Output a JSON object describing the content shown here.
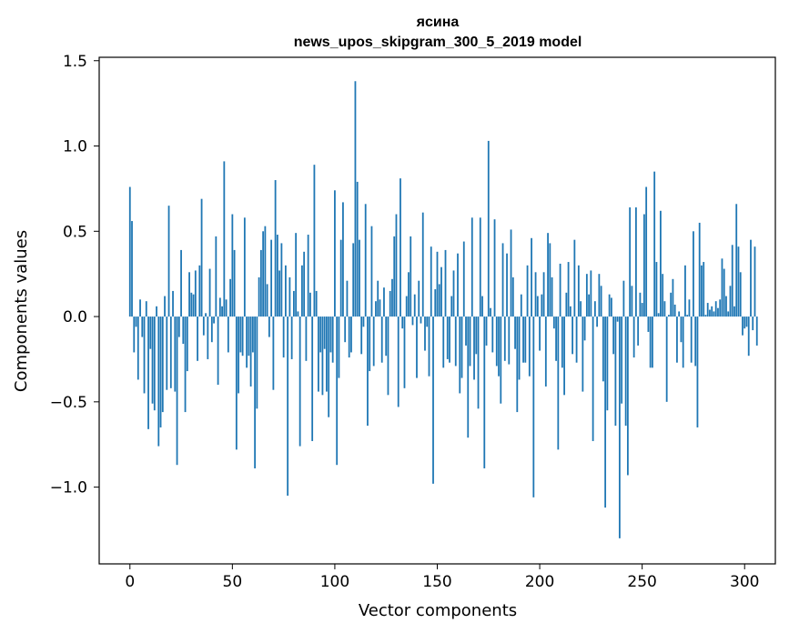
{
  "chart_data": {
    "type": "bar",
    "title_line1": "ясина",
    "title_line2": "news_upos_skipgram_300_5_2019 model",
    "xlabel": "Vector components",
    "ylabel": "Components values",
    "xlim": [
      -15,
      315
    ],
    "ylim": [
      -1.45,
      1.52
    ],
    "xticks": [
      0,
      50,
      100,
      150,
      200,
      250,
      300
    ],
    "xtick_labels": [
      "0",
      "50",
      "100",
      "150",
      "200",
      "250",
      "300"
    ],
    "yticks": [
      -1.0,
      -0.5,
      0.0,
      0.5,
      1.0,
      1.5
    ],
    "ytick_labels": [
      "−1.0",
      "−0.5",
      "0.0",
      "0.5",
      "1.0",
      "1.5"
    ],
    "bar_color": "#1f77b4",
    "x_start": 0,
    "values": [
      0.76,
      0.56,
      -0.21,
      -0.06,
      -0.37,
      0.1,
      -0.12,
      -0.45,
      0.09,
      -0.66,
      -0.19,
      -0.51,
      -0.55,
      0.06,
      -0.76,
      -0.65,
      -0.56,
      0.12,
      -0.43,
      0.65,
      -0.42,
      0.15,
      -0.44,
      -0.87,
      -0.12,
      0.39,
      -0.16,
      -0.56,
      -0.32,
      0.26,
      0.14,
      0.13,
      0.27,
      -0.26,
      0.3,
      0.69,
      -0.11,
      0.02,
      -0.25,
      0.28,
      -0.15,
      -0.04,
      0.47,
      -0.4,
      0.11,
      0.06,
      0.91,
      0.1,
      -0.21,
      0.22,
      0.6,
      0.39,
      -0.78,
      -0.45,
      -0.21,
      -0.23,
      0.58,
      -0.3,
      -0.23,
      -0.41,
      -0.21,
      -0.89,
      -0.54,
      0.23,
      0.39,
      0.5,
      0.53,
      0.19,
      -0.12,
      0.45,
      -0.43,
      0.8,
      0.48,
      0.27,
      0.43,
      -0.24,
      0.3,
      -1.05,
      0.23,
      -0.25,
      0.15,
      0.49,
      0.03,
      -0.76,
      0.3,
      0.38,
      -0.26,
      0.48,
      0.14,
      -0.73,
      0.89,
      0.15,
      -0.44,
      -0.21,
      -0.46,
      -0.19,
      -0.44,
      -0.59,
      -0.21,
      -0.27,
      0.74,
      -0.87,
      -0.36,
      0.45,
      0.67,
      -0.15,
      0.21,
      -0.24,
      -0.21,
      0.43,
      1.38,
      0.79,
      0.45,
      -0.22,
      -0.06,
      0.66,
      -0.64,
      -0.32,
      0.53,
      -0.29,
      0.09,
      0.21,
      0.1,
      -0.27,
      0.17,
      -0.23,
      -0.46,
      0.15,
      0.22,
      0.47,
      0.6,
      -0.53,
      0.81,
      -0.07,
      -0.42,
      0.12,
      0.26,
      0.47,
      -0.05,
      0.13,
      -0.36,
      0.21,
      -0.04,
      0.61,
      -0.2,
      -0.06,
      -0.35,
      0.41,
      -0.98,
      0.16,
      0.38,
      0.19,
      0.29,
      -0.3,
      0.39,
      -0.25,
      -0.27,
      0.12,
      0.27,
      -0.29,
      0.37,
      -0.45,
      -0.36,
      0.44,
      -0.17,
      -0.71,
      -0.29,
      0.58,
      -0.37,
      -0.22,
      -0.54,
      0.58,
      0.12,
      -0.89,
      -0.17,
      1.03,
      0.05,
      -0.21,
      0.57,
      -0.29,
      -0.35,
      -0.51,
      0.43,
      -0.26,
      0.37,
      -0.28,
      0.51,
      0.23,
      -0.19,
      -0.56,
      -0.37,
      0.13,
      -0.27,
      -0.27,
      0.3,
      -0.35,
      0.46,
      -1.06,
      0.26,
      0.12,
      -0.2,
      0.13,
      0.26,
      -0.41,
      0.49,
      0.43,
      0.23,
      -0.07,
      -0.26,
      -0.78,
      0.31,
      -0.3,
      -0.46,
      0.14,
      0.32,
      0.06,
      -0.22,
      0.45,
      -0.27,
      0.3,
      0.09,
      -0.44,
      -0.14,
      0.25,
      0.13,
      0.27,
      -0.73,
      0.09,
      -0.06,
      0.25,
      0.18,
      -0.38,
      -1.12,
      -0.55,
      0.13,
      0.11,
      -0.22,
      -0.64,
      -0.03,
      -1.3,
      -0.51,
      0.21,
      -0.64,
      -0.93,
      0.64,
      0.18,
      -0.24,
      0.64,
      -0.17,
      0.14,
      0.08,
      0.6,
      0.76,
      -0.09,
      -0.3,
      -0.3,
      0.85,
      0.32,
      0.02,
      0.62,
      0.25,
      0.09,
      -0.5,
      0.01,
      0.14,
      0.22,
      0.07,
      -0.27,
      0.03,
      -0.15,
      -0.3,
      0.3,
      0.01,
      0.1,
      -0.27,
      0.5,
      -0.29,
      -0.65,
      0.55,
      0.3,
      0.32,
      0.01,
      0.08,
      0.04,
      0.06,
      0.03,
      0.09,
      0.05,
      0.1,
      0.34,
      0.28,
      0.12,
      0.03,
      0.18,
      0.42,
      0.06,
      0.66,
      0.41,
      0.26,
      -0.11,
      -0.07,
      -0.06,
      -0.23,
      0.45,
      -0.08,
      0.41,
      -0.17
    ]
  }
}
